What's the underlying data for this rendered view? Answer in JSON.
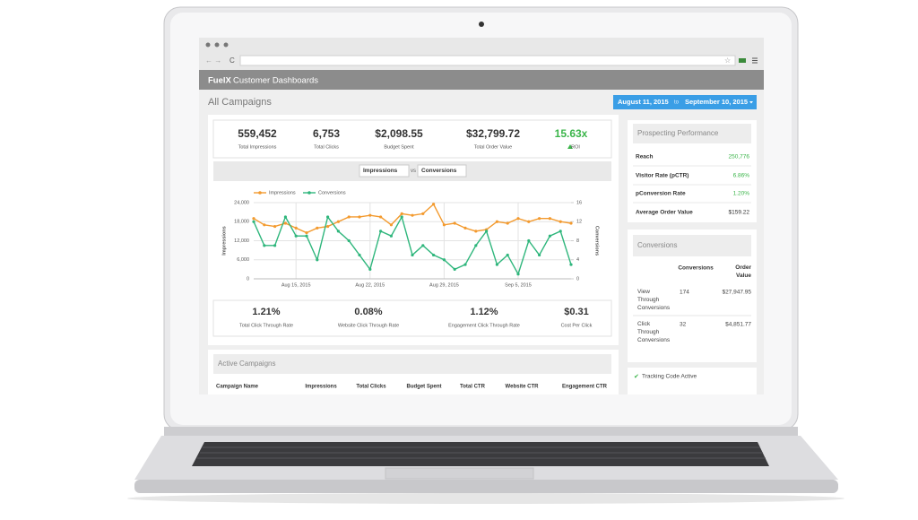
{
  "header": {
    "brand": "FuelX",
    "title": "Customer Dashboards"
  },
  "page_title": "All Campaigns",
  "date_range": {
    "start": "August 11, 2015",
    "separator": "to",
    "end": "September 10, 2015"
  },
  "summary": [
    {
      "value": "559,452",
      "label": "Total Impressions"
    },
    {
      "value": "6,753",
      "label": "Total Clicks"
    },
    {
      "value": "$2,098.55",
      "label": "Budget Spent"
    },
    {
      "value": "$32,799.72",
      "label": "Total Order Value"
    },
    {
      "value": "15.63x",
      "label": "ROI"
    }
  ],
  "metric_selector": {
    "left": "Impressions",
    "separator": "vs",
    "right": "Conversions"
  },
  "chart_data": {
    "type": "line",
    "categories": [
      null,
      null,
      null,
      null,
      "Aug 15, 2015",
      null,
      null,
      null,
      null,
      null,
      null,
      "Aug 22, 2015",
      null,
      null,
      null,
      null,
      null,
      null,
      "Aug 29, 2015",
      null,
      null,
      null,
      null,
      null,
      null,
      "Sep 5, 2015",
      null,
      null,
      null,
      null,
      null
    ],
    "series": [
      {
        "name": "Impressions",
        "color": "#f39a2e",
        "values": [
          19000,
          17000,
          16500,
          17500,
          16000,
          14500,
          16000,
          16500,
          18000,
          19500,
          19500,
          20000,
          19500,
          17000,
          20500,
          20000,
          20500,
          23500,
          17000,
          17500,
          16000,
          15000,
          15500,
          18000,
          17500,
          19000,
          18000,
          19000,
          19000,
          18000,
          17500
        ]
      },
      {
        "name": "Conversions",
        "color": "#2fb67c",
        "axis": "y2",
        "values": [
          12,
          7,
          7,
          13,
          9,
          9,
          4,
          13,
          10,
          8,
          5,
          2,
          10,
          9,
          13,
          5,
          7,
          5,
          4,
          2,
          3,
          7,
          10,
          3,
          5,
          1,
          8,
          5,
          9,
          10,
          3
        ]
      }
    ],
    "ylabel": "Impressions",
    "y2label": "Conversions",
    "ylim": [
      0,
      24000
    ],
    "yticks": [
      0,
      {
        "value": 6000,
        "label": "6,000"
      },
      {
        "value": 12000,
        "label": "12,000"
      },
      {
        "value": 18000,
        "label": "18,000"
      },
      {
        "value": 24000,
        "label": "24,000"
      }
    ],
    "y2lim": [
      0,
      16
    ],
    "y2ticks": [
      0,
      4,
      8,
      12,
      16
    ],
    "grid": true,
    "legend": "top"
  },
  "rates": [
    {
      "value": "1.21%",
      "label": "Total Click Through Rate"
    },
    {
      "value": "0.08%",
      "label": "Website Click Through Rate"
    },
    {
      "value": "1.12%",
      "label": "Engagement Click Through Rate"
    },
    {
      "value": "$0.31",
      "label": "Cost Per Click"
    }
  ],
  "active_campaigns": {
    "title": "Active Campaigns",
    "columns": [
      "Campaign Name",
      "Impressions",
      "Total Clicks",
      "Budget Spent",
      "Total CTR",
      "Website CTR",
      "Engagement CTR"
    ]
  },
  "prospecting": {
    "title": "Prospecting Performance",
    "rows": [
      [
        "Reach",
        "250,776"
      ],
      [
        "Visitor Rate (pCTR)",
        "6.86%"
      ],
      [
        "pConversion Rate",
        "1.20%"
      ],
      [
        "Average Order Value",
        "$159.22"
      ]
    ]
  },
  "conversions": {
    "title": "Conversions",
    "columns": [
      "Conversions",
      "Order Value"
    ],
    "rows": [
      [
        "View Through Conversions",
        "174",
        "$27,947.95"
      ],
      [
        "Click Through Conversions",
        "32",
        "$4,851.77"
      ]
    ]
  },
  "tracking": "Tracking Code Active"
}
